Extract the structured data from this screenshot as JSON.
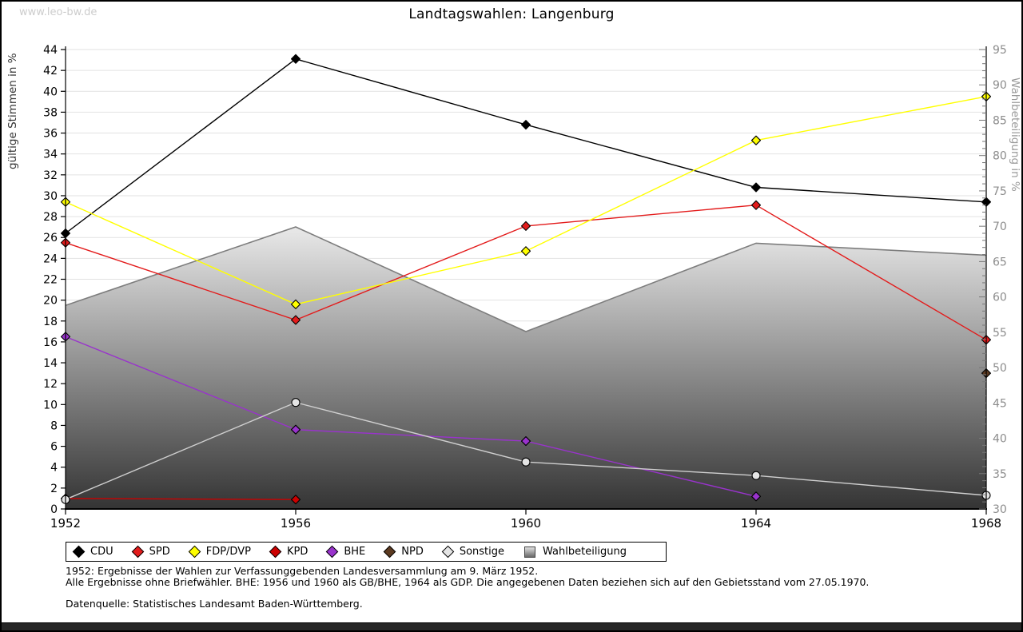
{
  "page": {
    "watermark": "www.leo-bw.de",
    "title": "Landtagswahlen: Langenburg"
  },
  "chart_data": {
    "type": "line",
    "title": "Landtagswahlen: Langenburg",
    "x": [
      1952,
      1956,
      1960,
      1964,
      1968
    ],
    "axis_left": {
      "label": "gültige Stimmen in %",
      "min": 0,
      "max": 44,
      "tick_step": 2
    },
    "axis_right": {
      "label": "Wahlbeteiligung in %",
      "min": 30,
      "max": 95,
      "tick_step": 5,
      "minor_step": 1
    },
    "grid": "horizontal",
    "legend_position": "bottom",
    "series": [
      {
        "name": "Wahlbeteiligung",
        "kind": "area",
        "axis": "right",
        "line_color": "#7d7d7d",
        "fill_top": "#e9e9e9",
        "fill_bottom": "#343434",
        "marker": "none",
        "values": [
          58.8,
          69.9,
          55.1,
          67.6,
          65.9
        ]
      },
      {
        "name": "CDU",
        "kind": "line",
        "axis": "left",
        "line_color": "#000000",
        "marker": "diamond",
        "marker_fill": "#000000",
        "values": [
          26.4,
          43.1,
          36.8,
          30.8,
          29.4
        ]
      },
      {
        "name": "SPD",
        "kind": "line",
        "axis": "left",
        "line_color": "#e31b1b",
        "marker": "diamond",
        "marker_fill": "#e31b1b",
        "values": [
          25.5,
          18.1,
          27.1,
          29.1,
          16.2
        ]
      },
      {
        "name": "FDP/DVP",
        "kind": "line",
        "axis": "left",
        "line_color": "#ffff00",
        "marker": "diamond",
        "marker_fill": "#ffff00",
        "values": [
          29.4,
          19.6,
          24.7,
          35.3,
          39.5
        ]
      },
      {
        "name": "KPD",
        "kind": "line",
        "axis": "left",
        "line_color": "#cc0000",
        "marker": "diamond",
        "marker_fill": "#cc0000",
        "values": [
          1.0,
          0.9,
          null,
          null,
          null
        ]
      },
      {
        "name": "BHE",
        "kind": "line",
        "axis": "left",
        "line_color": "#9933cc",
        "marker": "diamond",
        "marker_fill": "#9933cc",
        "values": [
          16.5,
          7.6,
          6.5,
          1.2,
          null
        ]
      },
      {
        "name": "NPD",
        "kind": "line",
        "axis": "left",
        "line_color": "#5c3a21",
        "marker": "diamond",
        "marker_fill": "#5c3a21",
        "values": [
          null,
          null,
          null,
          null,
          13.0
        ]
      },
      {
        "name": "Sonstige",
        "kind": "line",
        "axis": "left",
        "line_color": "#cfcfcf",
        "marker": "circle",
        "marker_fill": "#e4e4e4",
        "values": [
          0.9,
          10.2,
          4.5,
          3.2,
          1.3
        ]
      }
    ]
  },
  "notes": {
    "line1": "1952: Ergebnisse der Wahlen zur Verfassunggebenden Landesversammlung am 9. März 1952.",
    "line2": "Alle Ergebnisse ohne Briefwähler. BHE: 1956 und 1960 als GB/BHE, 1964 als GDP. Die angegebenen Daten beziehen sich auf den Gebietsstand vom 27.05.1970.",
    "source": "Datenquelle: Statistisches Landesamt Baden-Württemberg."
  }
}
